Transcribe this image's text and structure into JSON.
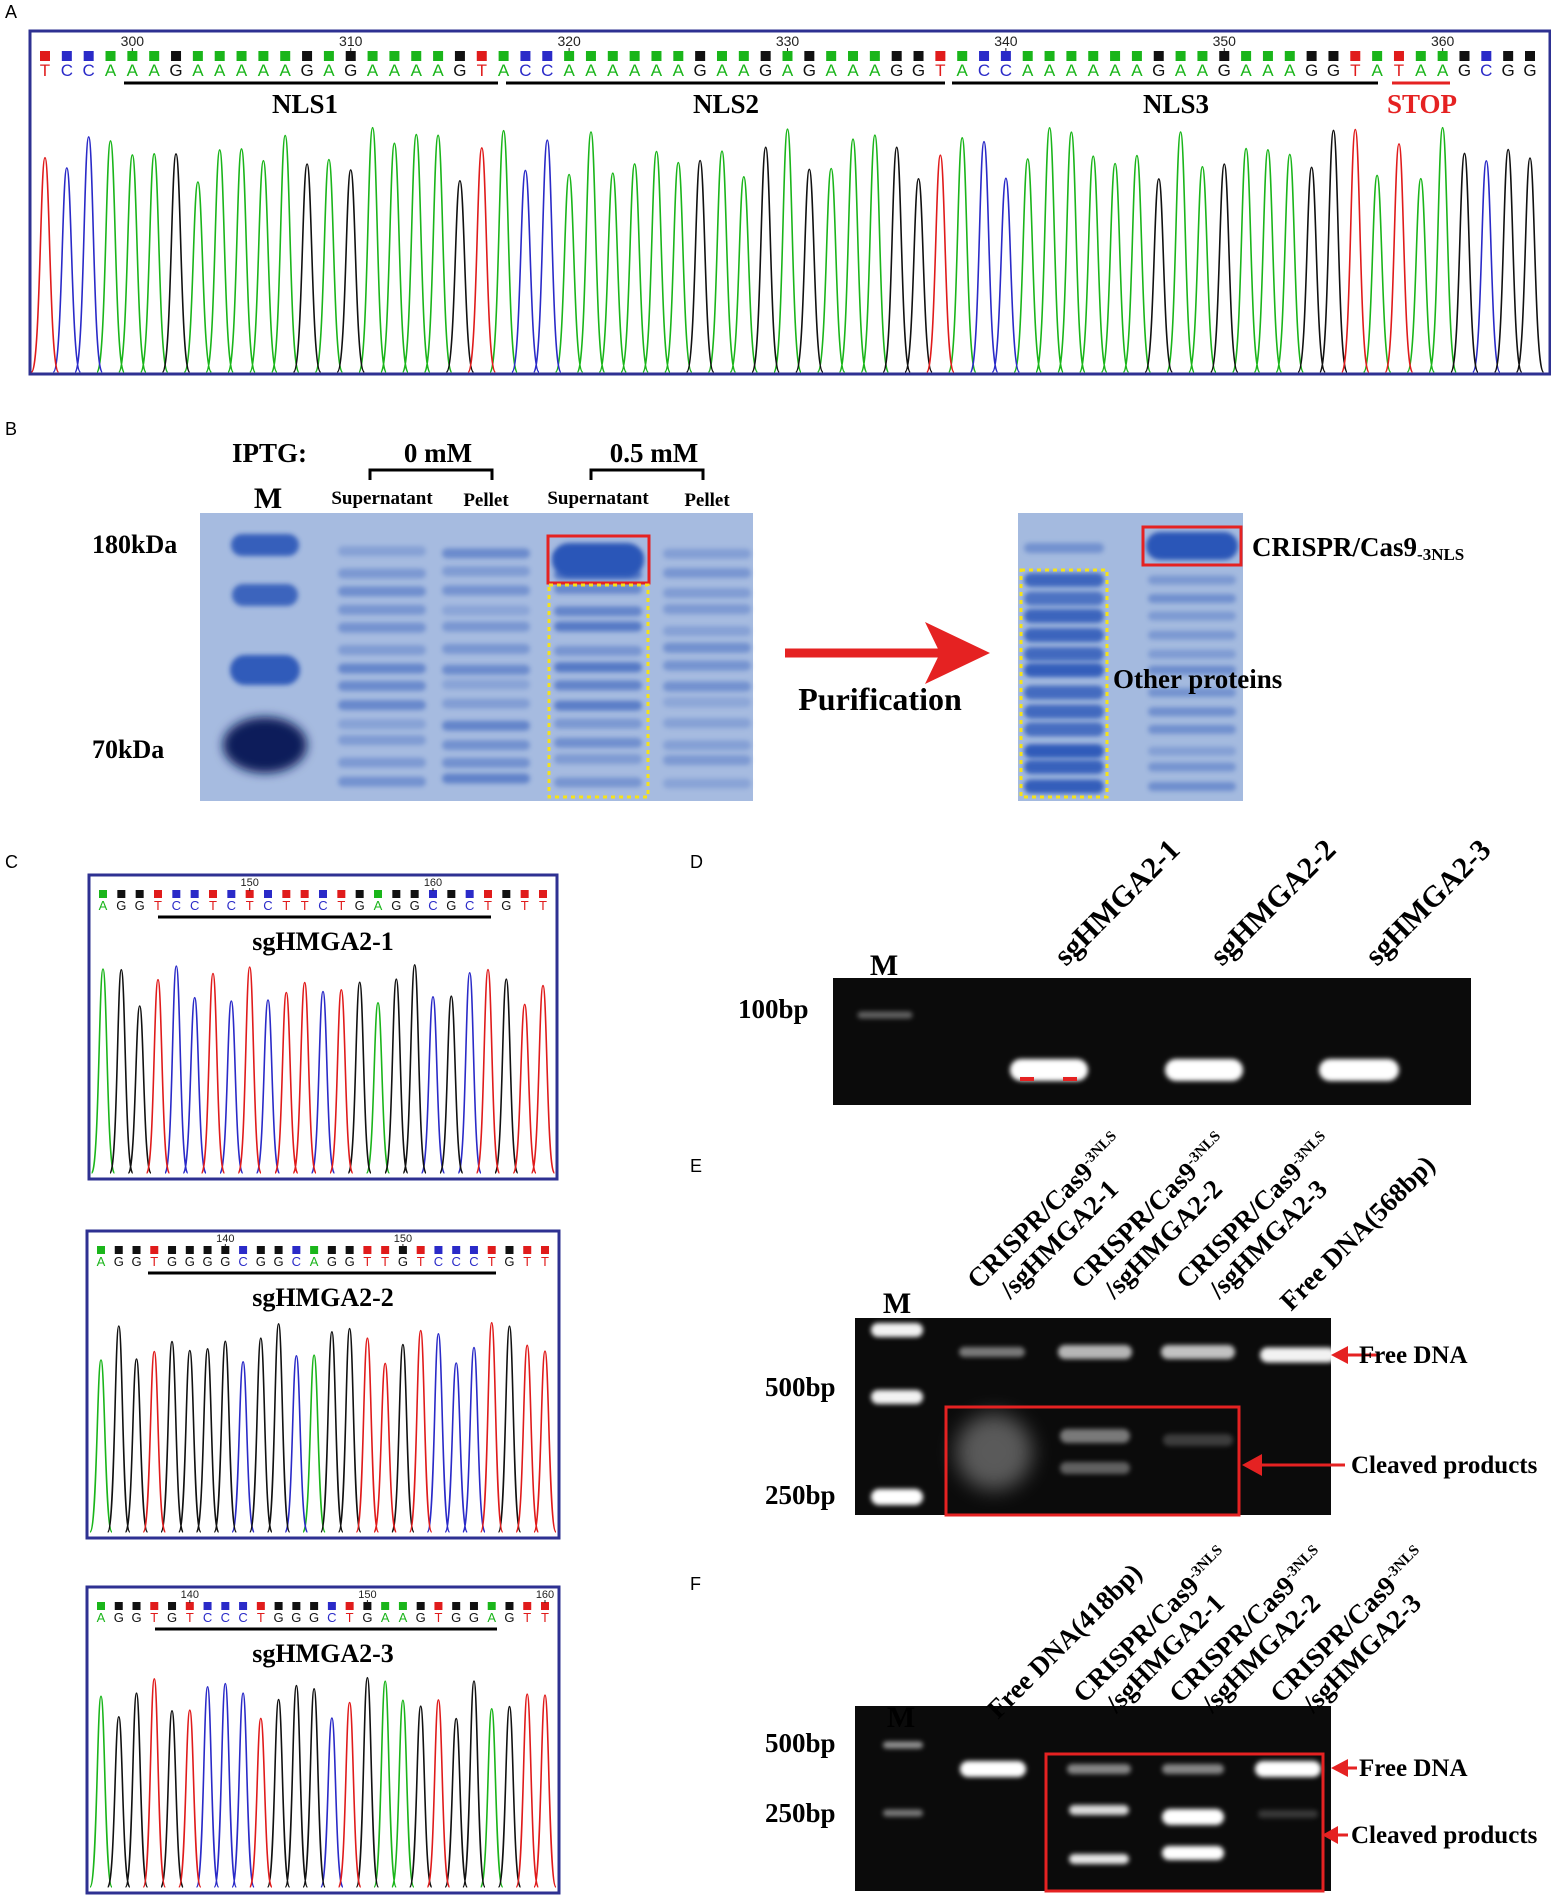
{
  "panels": {
    "A": {
      "label": "A",
      "sequence": "TCCAAAGAAAAAGAGAAAAGTACCAAAAAAGAAGAGAAAGGTACCAAAAAAGAAGAAAGGTATAAGCGG",
      "position_labels": [
        "300",
        "310",
        "320",
        "330",
        "340",
        "350",
        "360"
      ],
      "regions": [
        "NLS1",
        "NLS2",
        "NLS3"
      ],
      "stop_label": "STOP"
    },
    "B": {
      "label": "B",
      "iptg_label": "IPTG:",
      "conc_0": "0 mM",
      "conc_05": "0.5 mM",
      "marker_label": "M",
      "lane_supernatant": "Supernatant",
      "lane_pellet": "Pellet",
      "size_high": "180kDa",
      "size_low": "70kDa",
      "arrow_label": "Purification",
      "target_label": "CRISPR/Cas9",
      "target_subscript": "-3NLS",
      "other_label": "Other proteins"
    },
    "C": {
      "label": "C",
      "traces": [
        {
          "sequence": "AGGTCCTCTCTTCTGAGGCGCTGTT",
          "positions": [
            "150",
            "160"
          ],
          "name": "sgHMGA2-1"
        },
        {
          "sequence": "AGGTGGGGCGGCAGGTTGTCCCTGTT",
          "positions": [
            "140",
            "150"
          ],
          "name": "sgHMGA2-2"
        },
        {
          "sequence": "AGGTGTCCCTGGGCTGAAGTGGAGTT",
          "positions": [
            "140",
            "150",
            "160"
          ],
          "name": "sgHMGA2-3"
        }
      ]
    },
    "D": {
      "label": "D",
      "marker_label": "M",
      "size_label": "100bp",
      "lanes": [
        "sgHMGA2-1",
        "sgHMGA2-2",
        "sgHMGA2-3"
      ]
    },
    "E": {
      "label": "E",
      "marker_label": "M",
      "size_labels": [
        "500bp",
        "250bp"
      ],
      "lanes": [
        {
          "line1": "CRISPR/Cas9",
          "sub": "-3NLS",
          "line2": "/sgHMGA2-1"
        },
        {
          "line1": "CRISPR/Cas9",
          "sub": "-3NLS",
          "line2": "/sgHMGA2-2"
        },
        {
          "line1": "CRISPR/Cas9",
          "sub": "-3NLS",
          "line2": "/sgHMGA2-3"
        },
        {
          "line1": "Free DNA(568bp)",
          "sub": "",
          "line2": ""
        }
      ],
      "free_label": "Free DNA",
      "cleaved_label": "Cleaved products"
    },
    "F": {
      "label": "F",
      "marker_label": "M",
      "size_labels": [
        "500bp",
        "250bp"
      ],
      "lanes": [
        {
          "line1": "Free DNA(418bp)",
          "sub": "",
          "line2": ""
        },
        {
          "line1": "CRISPR/Cas9",
          "sub": "-3NLS",
          "line2": "/sgHMGA2-1"
        },
        {
          "line1": "CRISPR/Cas9",
          "sub": "-3NLS",
          "line2": "/sgHMGA2-2"
        },
        {
          "line1": "CRISPR/Cas9",
          "sub": "-3NLS",
          "line2": "/sgHMGA2-3"
        }
      ],
      "free_label": "Free DNA",
      "cleaved_label": "Cleaved products"
    }
  },
  "colors": {
    "frame": "#2e3192",
    "base_A": "#1ab51a",
    "base_C": "#2a2ac8",
    "base_G": "#111111",
    "base_T": "#e01b1b",
    "highlight": "#e52222",
    "purification_box": "#f5e21a",
    "coomassie_bg": "#a6bbe0",
    "coomassie_band": "#2a56b8",
    "gel_bg": "#0b0b0b"
  }
}
